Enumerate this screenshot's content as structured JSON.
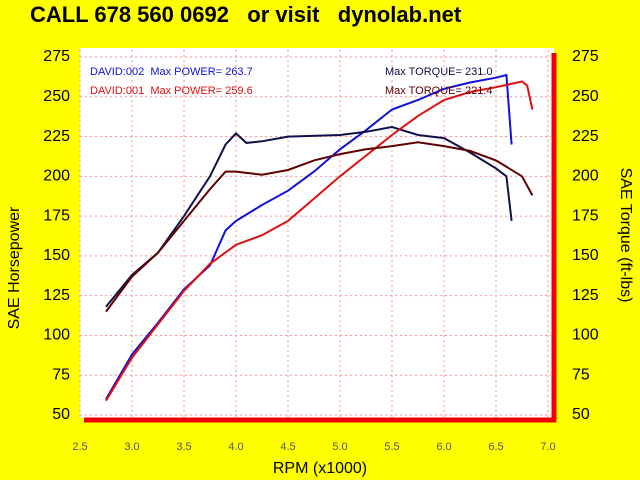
{
  "chart_data": {
    "type": "line",
    "title": "CALL 678 560 0692   or visit   dynolab.net",
    "x_label": "RPM (x1000)",
    "y_label": "SAE Horsepower",
    "y2_label": "SAE Torque (ft-lbs)",
    "xlim": [
      2.5,
      7.0
    ],
    "xticks": [
      2.5,
      {
        "value": 3,
        "label": "3.0"
      },
      3.5,
      {
        "value": 4,
        "label": "4.0"
      },
      4.5,
      {
        "value": 5,
        "label": "5.0"
      },
      5.5,
      {
        "value": 6,
        "label": "6.0"
      },
      6.5,
      {
        "value": 7,
        "label": "7.0"
      }
    ],
    "ylim": [
      50,
      275
    ],
    "yticks": [
      50,
      75,
      100,
      125,
      150,
      175,
      200,
      225,
      250,
      275
    ],
    "y2lim": [
      50,
      275
    ],
    "y2ticks": [
      50,
      75,
      100,
      125,
      150,
      175,
      200,
      225,
      250,
      275
    ],
    "grid": true,
    "series": [
      {
        "name": "DAVID:002  Max POWER= 263.7",
        "color": "#1010e0",
        "x": [
          2.75,
          3.0,
          3.25,
          3.5,
          3.75,
          3.9,
          4.0,
          4.25,
          4.5,
          4.75,
          5.0,
          5.25,
          5.5,
          5.75,
          6.0,
          6.25,
          6.5,
          6.6,
          6.65
        ],
        "values": [
          60,
          88,
          108,
          129,
          144,
          166,
          172,
          182,
          191,
          203,
          217,
          229,
          242,
          248,
          255,
          259,
          262,
          263.7,
          220
        ]
      },
      {
        "name": "Max TORQUE= 231.0",
        "color": "#10104a",
        "axis": "y2",
        "x": [
          2.75,
          3.0,
          3.25,
          3.5,
          3.75,
          3.9,
          4.0,
          4.1,
          4.25,
          4.5,
          5.0,
          5.25,
          5.5,
          5.75,
          6.0,
          6.25,
          6.5,
          6.6,
          6.65
        ],
        "values": [
          118,
          138,
          152,
          175,
          200,
          220,
          227,
          221,
          222,
          225,
          226,
          228,
          231,
          226,
          224,
          215,
          205,
          200,
          172
        ]
      },
      {
        "name": "DAVID:001  Max POWER= 259.6",
        "color": "#e01010",
        "x": [
          2.75,
          3.0,
          3.25,
          3.5,
          3.75,
          4.0,
          4.25,
          4.5,
          4.75,
          5.0,
          5.25,
          5.5,
          5.75,
          6.0,
          6.25,
          6.5,
          6.75,
          6.8,
          6.85
        ],
        "values": [
          59,
          86,
          107,
          128,
          145,
          157,
          163,
          172,
          186,
          200,
          213,
          226,
          238,
          248,
          253,
          256,
          259.6,
          257,
          242
        ]
      },
      {
        "name": "Max TORQUE= 221.4",
        "color": "#600000",
        "axis": "y2",
        "x": [
          2.75,
          3.0,
          3.25,
          3.5,
          3.75,
          3.9,
          4.0,
          4.25,
          4.5,
          4.75,
          5.0,
          5.25,
          5.5,
          5.75,
          6.0,
          6.25,
          6.5,
          6.75,
          6.85
        ],
        "values": [
          115,
          137,
          152,
          172,
          192,
          203,
          203,
          201,
          204,
          210,
          214,
          217,
          219,
          221.4,
          219,
          216,
          210,
          200,
          188
        ]
      }
    ]
  }
}
